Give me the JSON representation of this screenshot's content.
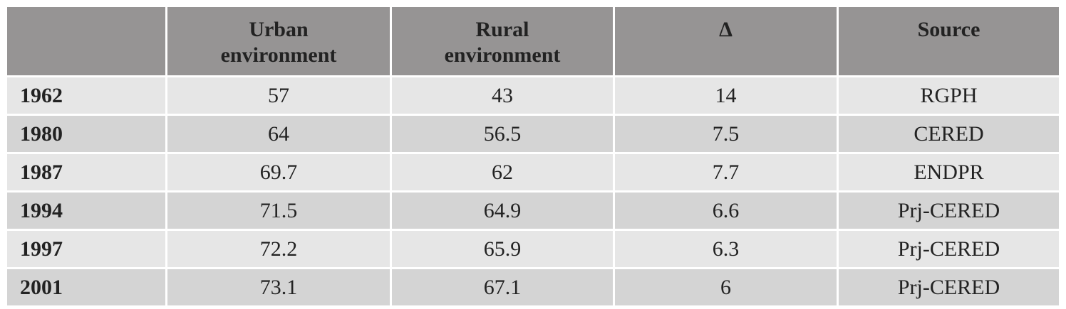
{
  "table": {
    "columns": [
      "Urban environment",
      "Rural environment",
      "Δ",
      "Source"
    ],
    "rows": [
      [
        "1962",
        57,
        43,
        14,
        "RGPH"
      ],
      [
        "1980",
        64,
        56.5,
        7.5,
        "CERED"
      ],
      [
        "1987",
        69.7,
        62,
        7.7,
        "ENDPR"
      ],
      [
        "1994",
        71.5,
        64.9,
        6.6,
        "Prj-CERED"
      ],
      [
        "1997",
        72.2,
        65.9,
        6.3,
        "Prj-CERED"
      ],
      [
        "2001",
        73.1,
        67.1,
        6,
        "Prj-CERED"
      ]
    ]
  }
}
